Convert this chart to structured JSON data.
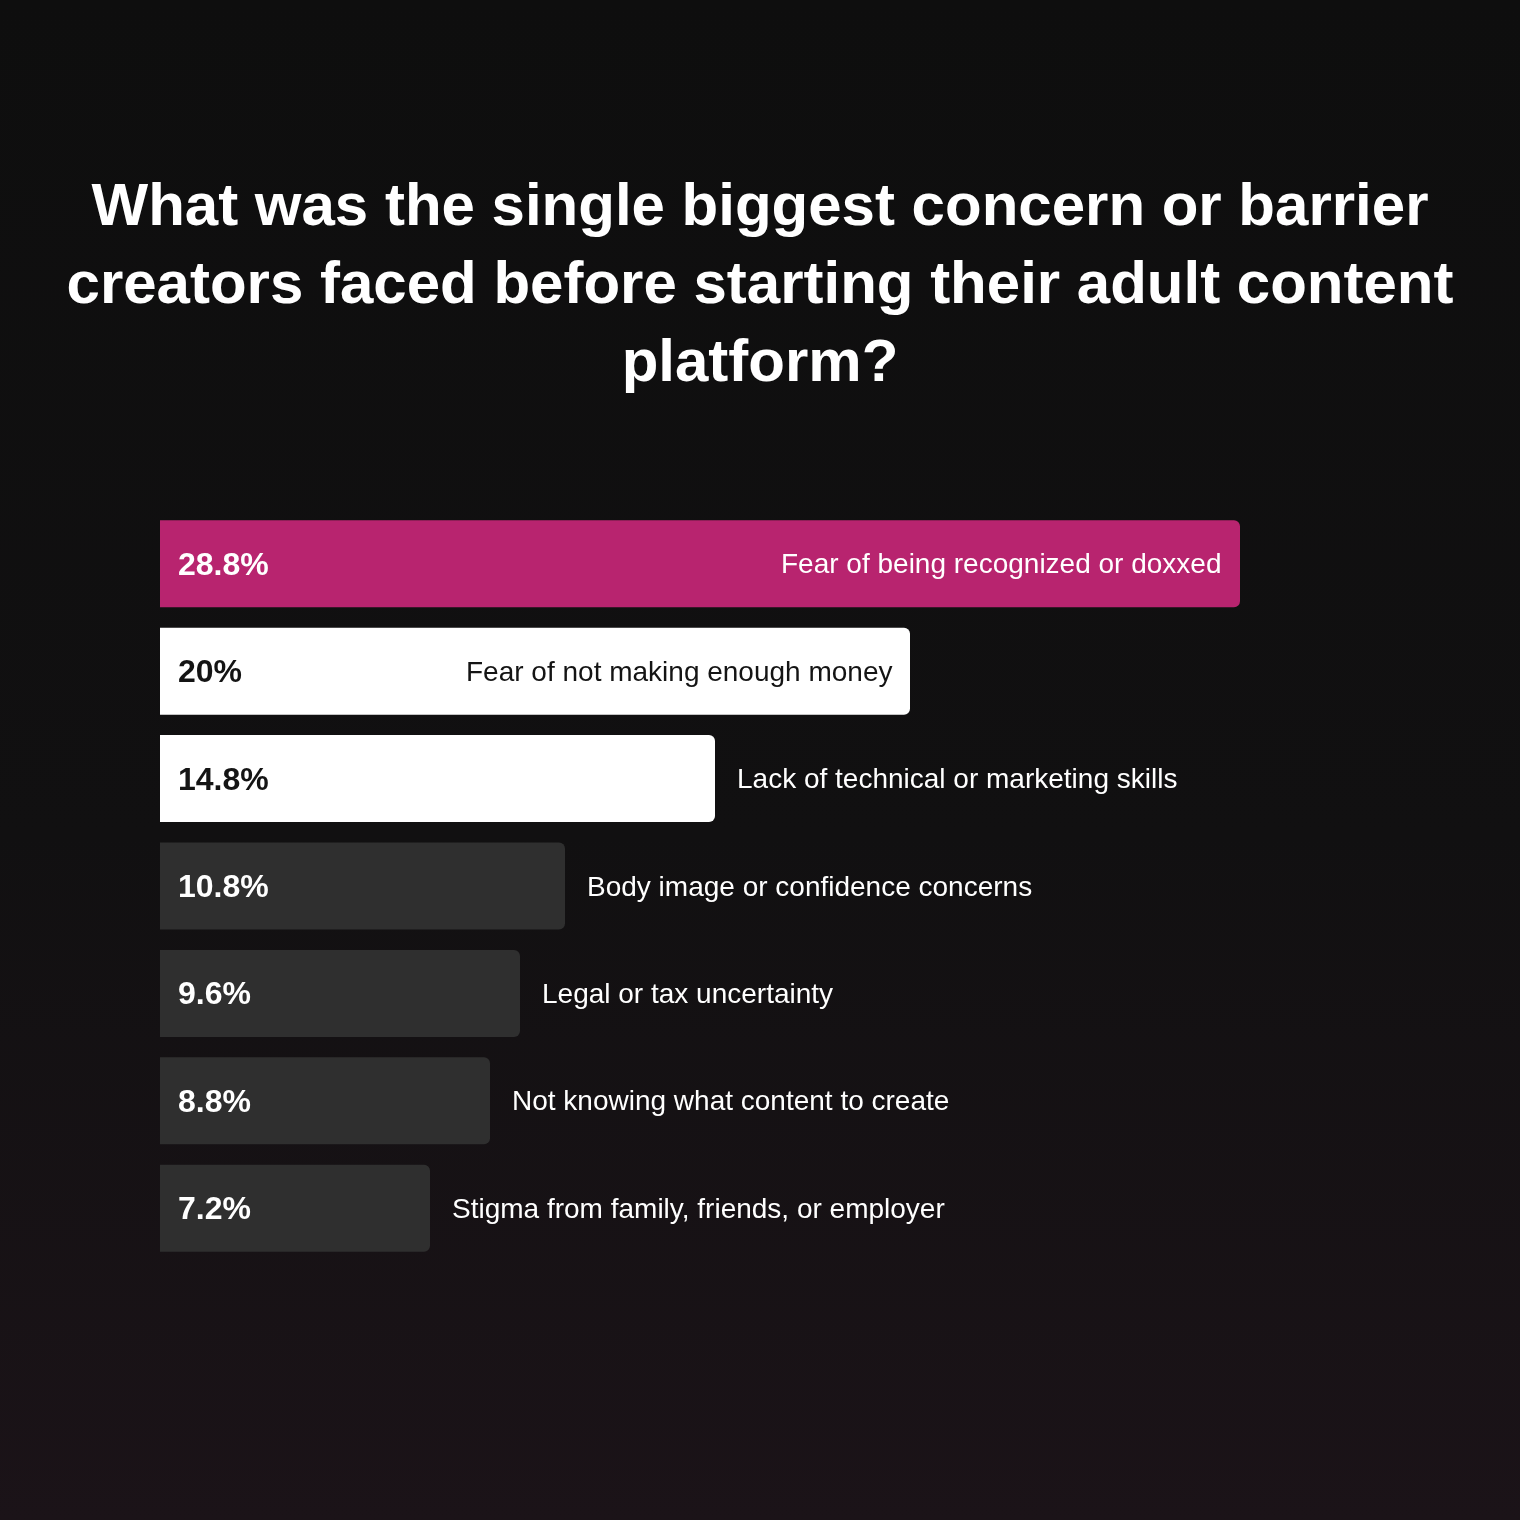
{
  "chart_data": {
    "type": "bar",
    "orientation": "horizontal",
    "title": "What was the single biggest concern or barrier creators faced before starting their adult content platform?",
    "categories": [
      "Fear of being recognized or doxxed",
      "Fear of not making enough money",
      "Lack of technical or marketing skills",
      "Body image or confidence concerns",
      "Legal or tax uncertainty",
      "Not knowing what content to create",
      "Stigma from family, friends, or employer"
    ],
    "values": [
      28.8,
      20,
      14.8,
      10.8,
      9.6,
      8.8,
      7.2
    ],
    "colors": [
      "#b8246f",
      "#ffffff",
      "#ffffff",
      "#2f2f2f",
      "#2f2f2f",
      "#2f2f2f",
      "#2f2f2f"
    ],
    "value_labels": [
      "28.8%",
      "20%",
      "14.8%",
      "10.8%",
      "9.6%",
      "8.8%",
      "7.2%"
    ],
    "xlim": [
      0,
      28.8
    ],
    "tick_labels": false
  }
}
